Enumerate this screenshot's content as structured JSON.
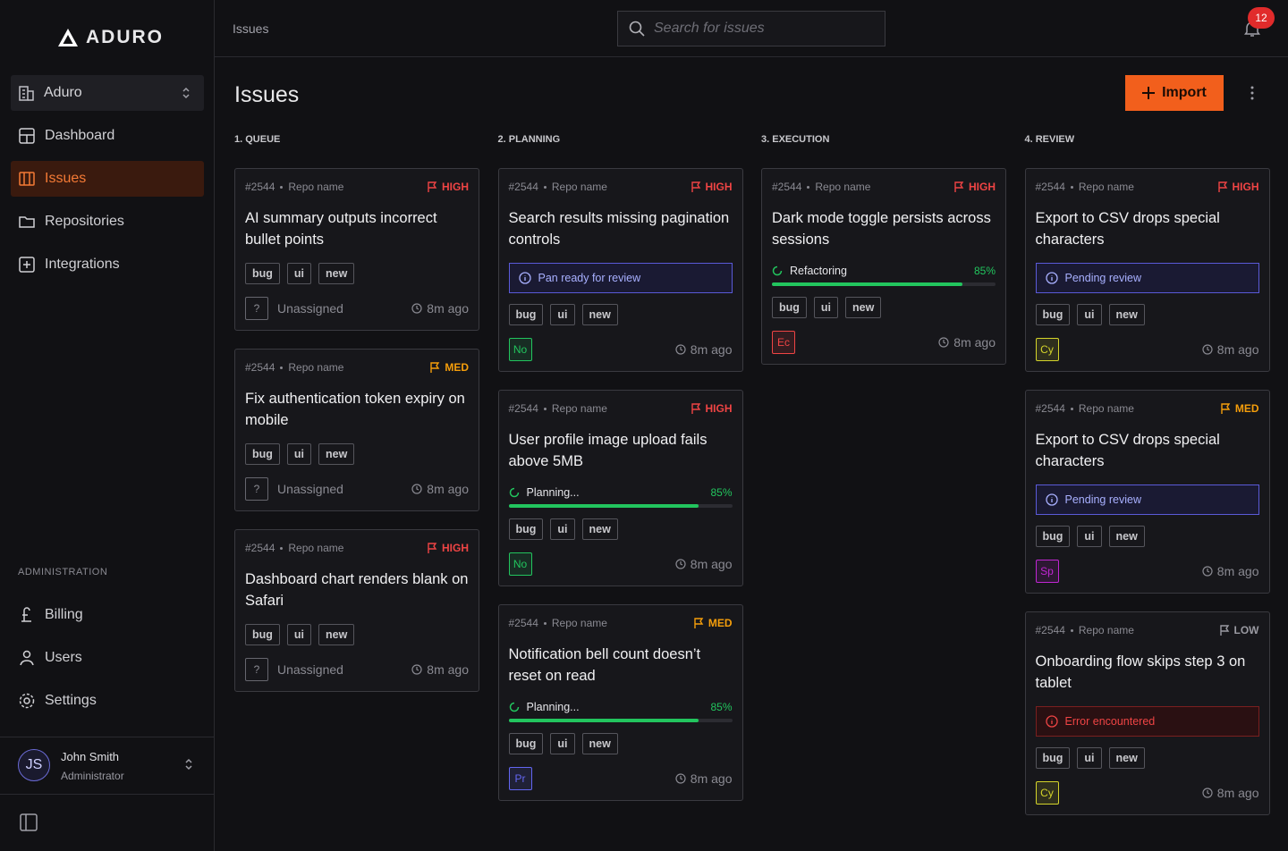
{
  "sidebar": {
    "brand": "ADURO",
    "workspace": "Aduro",
    "nav": [
      "Dashboard",
      "Issues",
      "Repositories",
      "Integrations"
    ],
    "admin_label": "ADMINISTRATION",
    "admin_nav": [
      "Billing",
      "Users",
      "Settings"
    ],
    "user": {
      "initials": "JS",
      "name": "John Smith",
      "role": "Administrator"
    }
  },
  "topbar": {
    "breadcrumb": "Issues",
    "search_placeholder": "Search for issues",
    "notifications": "12"
  },
  "header": {
    "title": "Issues",
    "import_button": "Import"
  },
  "columns": [
    {
      "name": "1. QUEUE",
      "cards": [
        {
          "id": "#2544",
          "repo": "Repo name",
          "priority": "HIGH",
          "priority_color": "#ef4444",
          "title": "AI summary outputs incorrect bullet points",
          "tags": [
            "bug",
            "ui",
            "new"
          ],
          "assignee": {
            "initials": "?",
            "name": "Unassigned"
          },
          "time": "8m ago"
        },
        {
          "id": "#2544",
          "repo": "Repo name",
          "priority": "MED",
          "priority_color": "#f59e0b",
          "title": "Fix authentication token expiry on mobile",
          "tags": [
            "bug",
            "ui",
            "new"
          ],
          "assignee": {
            "initials": "?",
            "name": "Unassigned"
          },
          "time": "8m ago"
        },
        {
          "id": "#2544",
          "repo": "Repo name",
          "priority": "HIGH",
          "priority_color": "#ef4444",
          "title": "Dashboard chart renders blank on Safari",
          "tags": [
            "bug",
            "ui",
            "new"
          ],
          "assignee": {
            "initials": "?",
            "name": "Unassigned"
          },
          "time": "8m ago"
        }
      ]
    },
    {
      "name": "2. PLANNING",
      "cards": [
        {
          "id": "#2544",
          "repo": "Repo name",
          "priority": "HIGH",
          "priority_color": "#ef4444",
          "title": "Search results missing pagination controls",
          "status": {
            "kind": "info",
            "text": "Pan ready for review"
          },
          "tags": [
            "bug",
            "ui",
            "new"
          ],
          "assignee": {
            "initials": "No",
            "color": "#22c55e"
          },
          "time": "8m ago"
        },
        {
          "id": "#2544",
          "repo": "Repo name",
          "priority": "HIGH",
          "priority_color": "#ef4444",
          "title": "User profile image upload fails above 5MB",
          "status": {
            "kind": "progress",
            "text": "Planning...",
            "progress": 85,
            "progress_label": "85%"
          },
          "tags": [
            "bug",
            "ui",
            "new"
          ],
          "assignee": {
            "initials": "No",
            "color": "#22c55e"
          },
          "time": "8m ago"
        },
        {
          "id": "#2544",
          "repo": "Repo name",
          "priority": "MED",
          "priority_color": "#f59e0b",
          "title": "Notification bell count doesn’t reset on read",
          "status": {
            "kind": "progress",
            "text": "Planning...",
            "progress": 85,
            "progress_label": "85%"
          },
          "tags": [
            "bug",
            "ui",
            "new"
          ],
          "assignee": {
            "initials": "Pr",
            "color": "#6366f1"
          },
          "time": "8m ago"
        }
      ]
    },
    {
      "name": "3. EXECUTION",
      "cards": [
        {
          "id": "#2544",
          "repo": "Repo name",
          "priority": "HIGH",
          "priority_color": "#ef4444",
          "title": "Dark mode toggle persists across sessions",
          "status": {
            "kind": "progress",
            "text": "Refactoring",
            "progress": 85,
            "progress_label": "85%"
          },
          "tags": [
            "bug",
            "ui",
            "new"
          ],
          "assignee": {
            "initials": "Ec",
            "color": "#ef4444"
          },
          "time": "8m ago"
        }
      ]
    },
    {
      "name": "4. REVIEW",
      "cards": [
        {
          "id": "#2544",
          "repo": "Repo name",
          "priority": "HIGH",
          "priority_color": "#ef4444",
          "title": "Export to CSV drops special characters",
          "status": {
            "kind": "info",
            "text": "Pending review"
          },
          "tags": [
            "bug",
            "ui",
            "new"
          ],
          "assignee": {
            "initials": "Cy",
            "color": "#d4d42a"
          },
          "time": "8m ago"
        },
        {
          "id": "#2544",
          "repo": "Repo name",
          "priority": "MED",
          "priority_color": "#f59e0b",
          "title": "Export to CSV drops special characters",
          "status": {
            "kind": "info",
            "text": "Pending review"
          },
          "tags": [
            "bug",
            "ui",
            "new"
          ],
          "assignee": {
            "initials": "Sp",
            "color": "#c026d3"
          },
          "time": "8m ago"
        },
        {
          "id": "#2544",
          "repo": "Repo name",
          "priority": "LOW",
          "priority_color": "#9a9aa2",
          "title": "Onboarding flow skips step 3 on tablet",
          "status": {
            "kind": "error",
            "text": "Error encountered"
          },
          "tags": [
            "bug",
            "ui",
            "new"
          ],
          "assignee": {
            "initials": "Cy",
            "color": "#d4d42a"
          },
          "time": "8m ago"
        }
      ]
    }
  ]
}
